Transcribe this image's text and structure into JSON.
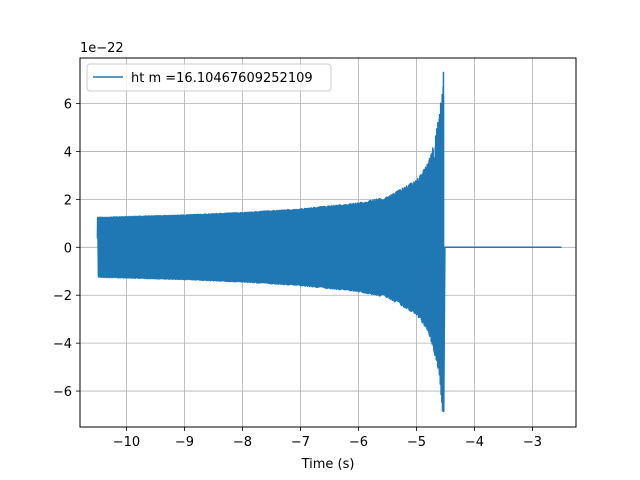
{
  "chart_data": {
    "type": "line",
    "title": "",
    "xlabel": "Time (s)",
    "ylabel": "",
    "y_offset_label": "1e−22",
    "xlim": [
      -10.8,
      -2.25
    ],
    "ylim": [
      -7.5,
      7.9
    ],
    "x_ticks": [
      -10,
      -9,
      -8,
      -7,
      -6,
      -5,
      -4,
      -3
    ],
    "x_tick_labels": [
      "−10",
      "−9",
      "−8",
      "−7",
      "−6",
      "−5",
      "−4",
      "−3"
    ],
    "y_ticks": [
      -6,
      -4,
      -2,
      0,
      2,
      4,
      6
    ],
    "y_tick_labels": [
      "−6",
      "−4",
      "−2",
      "0",
      "2",
      "4",
      "6"
    ],
    "grid": true,
    "legend_position": "top-left",
    "series": [
      {
        "name": "ht m =16.10467609252109",
        "color": "#1f77b4",
        "start": -10.5,
        "merger": -4.53,
        "end": -2.5,
        "envelope_points": [
          {
            "x": -10.5,
            "amp": 1.25
          },
          {
            "x": -9.0,
            "amp": 1.35
          },
          {
            "x": -8.0,
            "amp": 1.45
          },
          {
            "x": -7.0,
            "amp": 1.6
          },
          {
            "x": -6.0,
            "amp": 1.85
          },
          {
            "x": -5.5,
            "amp": 2.1
          },
          {
            "x": -5.0,
            "amp": 2.8
          },
          {
            "x": -4.8,
            "amp": 3.5
          },
          {
            "x": -4.7,
            "amp": 4.3
          },
          {
            "x": -4.6,
            "amp": 5.6
          },
          {
            "x": -4.55,
            "amp": 7.3
          }
        ],
        "neg_envelope_min": -6.85,
        "ringdown_value": 0.0
      }
    ]
  }
}
